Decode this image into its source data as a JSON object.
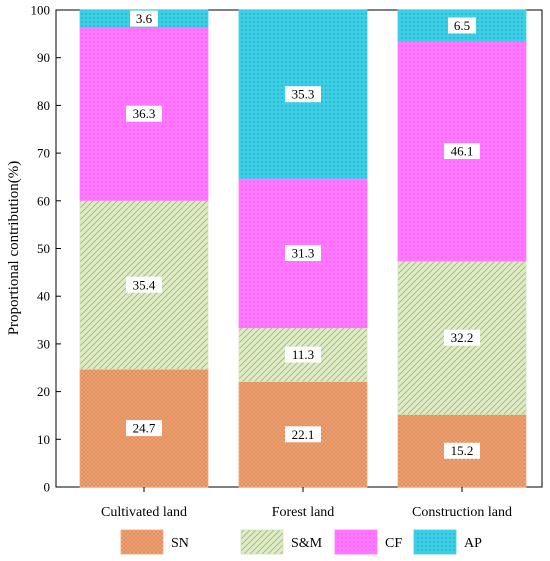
{
  "chart_data": {
    "type": "bar",
    "stacked": true,
    "categories": [
      "Cultivated land",
      "Forest land",
      "Construction land"
    ],
    "series": [
      {
        "name": "SN",
        "values": [
          24.7,
          22.1,
          15.2
        ],
        "color": "#F0A678",
        "pattern": "cross-dots"
      },
      {
        "name": "S&M",
        "values": [
          35.4,
          11.3,
          32.2
        ],
        "color": "#D3E3B4",
        "pattern": "diagonal-hatch"
      },
      {
        "name": "CF",
        "values": [
          36.3,
          31.3,
          46.1
        ],
        "color": "#FF78FF",
        "pattern": "dots"
      },
      {
        "name": "AP",
        "values": [
          3.6,
          35.3,
          6.5
        ],
        "color": "#3CCFE6",
        "pattern": "dots"
      }
    ],
    "ylabel": "Proportional contribution(%)",
    "xlabel": "",
    "ylim": [
      0,
      100
    ],
    "yticks": [
      0,
      10,
      20,
      30,
      40,
      50,
      60,
      70,
      80,
      90,
      100
    ],
    "grid": false,
    "legend_position": "bottom"
  }
}
